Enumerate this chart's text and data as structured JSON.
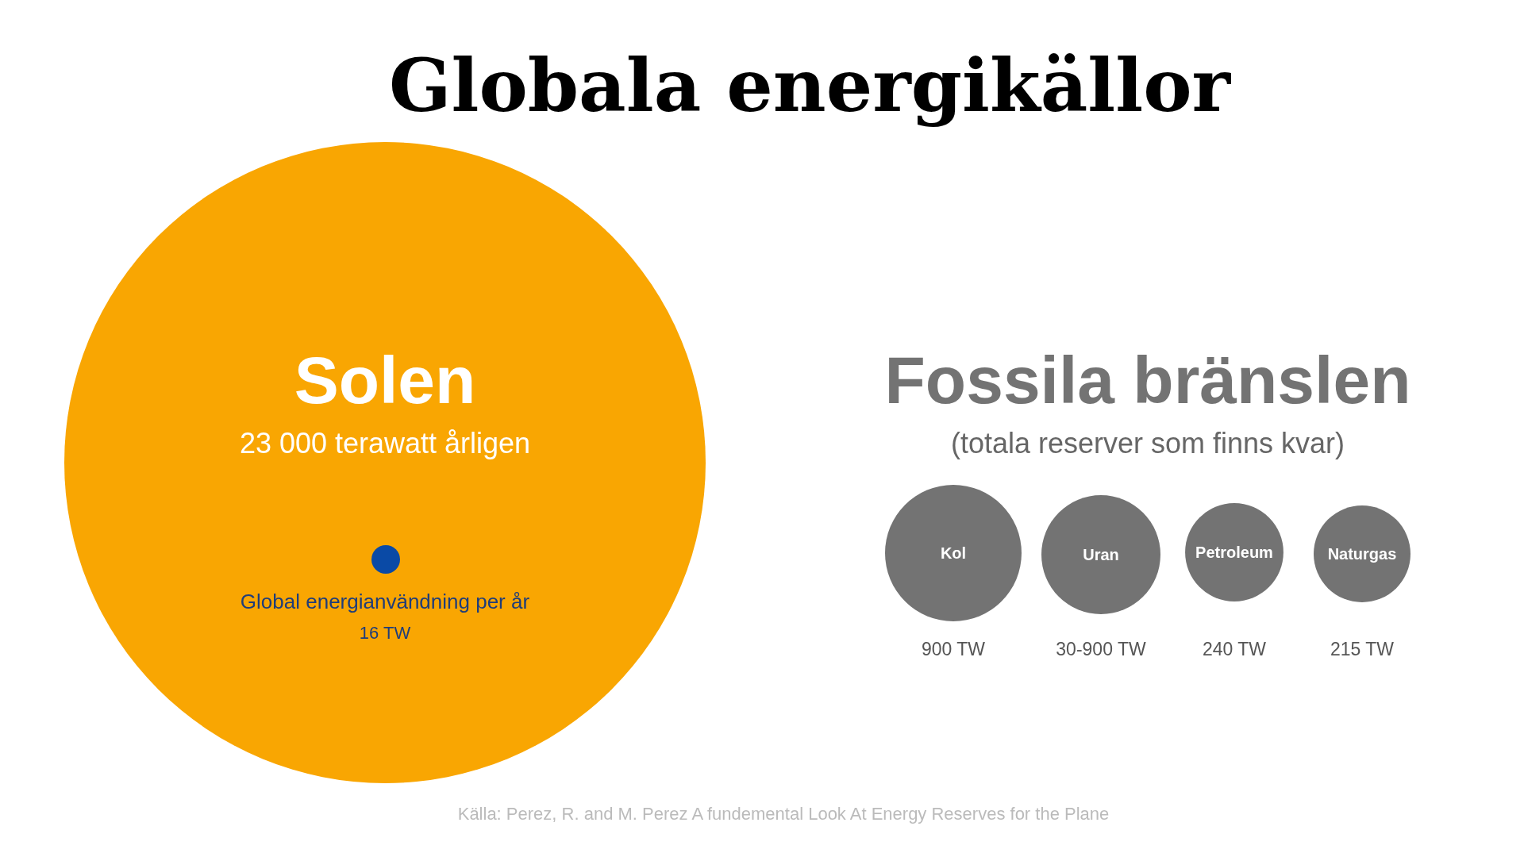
{
  "chart_data": {
    "type": "other",
    "title": "Globala energikällor",
    "subtitle": "Fossila bränslen",
    "categories": [
      "Solen",
      "Global energianvändning per år",
      "Kol",
      "Uran",
      "Petroleum",
      "Naturgas"
    ],
    "values": [
      23000,
      16,
      900,
      null,
      240,
      215
    ],
    "value_labels": [
      "23 000 terawatt årligen",
      "16 TW",
      "900 TW",
      "30-900 TW",
      "240 TW",
      "215 TW"
    ],
    "colors": [
      "#f9a602",
      "#0a4aa6",
      "#737373",
      "#737373",
      "#737373",
      "#737373"
    ],
    "annotations": [
      "(totala reserver som finns kvar)",
      "Källa: Perez, R. and M. Perez A fundemental Look At Energy Reserves for the Plane"
    ]
  }
}
